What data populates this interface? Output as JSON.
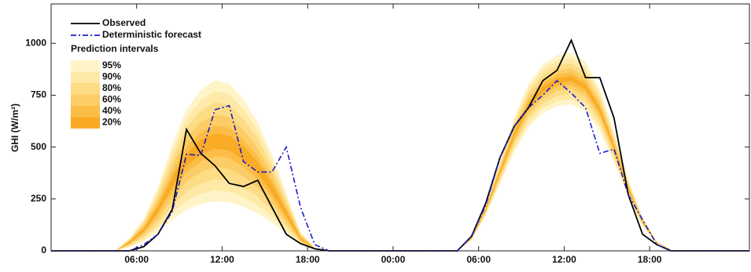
{
  "chart_data": {
    "type": "fan",
    "y_label": "GHI (W/m²)",
    "legend_title": "Prediction intervals",
    "xlim": [
      0,
      49
    ],
    "xticks": [
      {
        "value": 6,
        "label": "06:00"
      },
      {
        "value": 12,
        "label": "12:00"
      },
      {
        "value": 18,
        "label": "18:00"
      },
      {
        "value": 24,
        "label": "00:00"
      },
      {
        "value": 30,
        "label": "06:00"
      },
      {
        "value": 36,
        "label": "12:00"
      },
      {
        "value": 42,
        "label": "18:00"
      }
    ],
    "ylim": [
      0,
      1190
    ],
    "yticks": [
      0,
      250,
      500,
      750,
      1000
    ],
    "x": [
      0,
      4.5,
      5.5,
      6.5,
      7.5,
      8.5,
      9.5,
      10.5,
      11.5,
      12.5,
      13.5,
      14.5,
      15.5,
      16.5,
      17.5,
      18.5,
      19.5,
      28.5,
      29.5,
      30.5,
      31.5,
      32.5,
      33.5,
      34.5,
      35.5,
      36.5,
      37.5,
      38.5,
      39.5,
      40.5,
      41.5,
      42.5,
      43.5,
      44.5,
      49
    ],
    "series": [
      {
        "name": "Observed",
        "color": "#000000",
        "dash": "solid",
        "values": [
          0,
          0,
          0,
          20,
          80,
          200,
          585,
          470,
          410,
          325,
          310,
          340,
          210,
          80,
          35,
          10,
          0,
          0,
          70,
          230,
          450,
          600,
          690,
          820,
          870,
          1015,
          835,
          835,
          640,
          270,
          80,
          30,
          0,
          0,
          0
        ]
      },
      {
        "name": "Deterministic forecast",
        "color": "#1a1ad0",
        "dash": "dashdot",
        "values": [
          0,
          0,
          0,
          30,
          80,
          190,
          465,
          460,
          680,
          700,
          430,
          380,
          380,
          500,
          210,
          30,
          0,
          0,
          70,
          220,
          450,
          600,
          690,
          750,
          820,
          760,
          690,
          470,
          490,
          270,
          150,
          30,
          0,
          0,
          0
        ]
      }
    ],
    "bands_x": [
      4.5,
      5.5,
      6.5,
      7.5,
      8.5,
      9.5,
      10.5,
      11.5,
      12.5,
      13.5,
      14.5,
      15.5,
      16.5,
      17.5,
      18.5,
      19.5,
      28.5,
      29.5,
      30.5,
      31.5,
      32.5,
      33.5,
      34.5,
      35.5,
      36.5,
      37.5,
      38.5,
      39.5,
      40.5,
      41.5,
      42.5,
      43.5,
      44.5
    ],
    "bands": [
      {
        "name": "95%",
        "color": "#fff4c8",
        "upper": [
          0,
          62,
          155,
          310,
          512,
          682,
          775,
          822,
          806,
          729,
          620,
          465,
          279,
          93,
          16,
          0,
          0,
          69,
          230,
          437,
          644,
          805,
          897,
          943,
          955,
          909,
          782,
          575,
          345,
          161,
          46,
          6,
          0
        ],
        "lower": [
          0,
          18,
          45,
          90,
          149,
          198,
          225,
          239,
          234,
          212,
          180,
          135,
          81,
          27,
          5,
          0,
          0,
          51,
          170,
          323,
          476,
          595,
          663,
          697,
          706,
          672,
          578,
          425,
          255,
          119,
          34,
          4,
          0
        ]
      },
      {
        "name": "90%",
        "color": "#feeaa6",
        "upper": [
          0,
          58,
          145,
          290,
          479,
          638,
          725,
          769,
          754,
          682,
          580,
          435,
          261,
          87,
          15,
          0,
          0,
          67,
          224,
          426,
          627,
          784,
          874,
          918,
          930,
          885,
          762,
          560,
          336,
          157,
          45,
          6,
          0
        ],
        "lower": [
          0,
          22,
          55,
          110,
          182,
          242,
          275,
          292,
          286,
          259,
          220,
          165,
          99,
          33,
          6,
          0,
          0,
          53,
          176,
          334,
          493,
          616,
          686,
          722,
          730,
          695,
          598,
          440,
          264,
          123,
          35,
          4,
          0
        ]
      },
      {
        "name": "80%",
        "color": "#fddc86",
        "upper": [
          0,
          54,
          135,
          270,
          446,
          594,
          675,
          716,
          702,
          635,
          540,
          405,
          243,
          81,
          14,
          0,
          0,
          65,
          218,
          414,
          610,
          763,
          850,
          894,
          905,
          861,
          741,
          545,
          327,
          153,
          44,
          5,
          0
        ],
        "lower": [
          0,
          26,
          65,
          130,
          215,
          286,
          325,
          345,
          338,
          306,
          260,
          195,
          117,
          39,
          7,
          0,
          0,
          55,
          182,
          346,
          510,
          637,
          710,
          746,
          755,
          719,
          619,
          455,
          273,
          127,
          36,
          5,
          0
        ]
      },
      {
        "name": "60%",
        "color": "#fccd66",
        "upper": [
          0,
          50,
          124,
          248,
          409,
          546,
          620,
          657,
          645,
          583,
          496,
          372,
          223,
          74,
          12,
          0,
          0,
          64,
          212,
          403,
          594,
          742,
          827,
          869,
          880,
          837,
          721,
          530,
          318,
          148,
          42,
          5,
          0
        ],
        "lower": [
          0,
          30,
          76,
          152,
          251,
          334,
          380,
          403,
          395,
          357,
          304,
          228,
          137,
          46,
          8,
          0,
          0,
          56,
          188,
          357,
          526,
          658,
          733,
          771,
          780,
          743,
          639,
          470,
          282,
          132,
          38,
          5,
          0
        ]
      },
      {
        "name": "40%",
        "color": "#fbbd45",
        "upper": [
          0,
          46,
          114,
          228,
          376,
          502,
          570,
          604,
          593,
          536,
          456,
          342,
          205,
          68,
          11,
          0,
          0,
          62,
          207,
          393,
          580,
          725,
          807,
          849,
          859,
          818,
          704,
          518,
          311,
          145,
          41,
          5,
          0
        ],
        "lower": [
          0,
          34,
          86,
          172,
          284,
          378,
          430,
          456,
          447,
          404,
          344,
          258,
          155,
          52,
          9,
          0,
          0,
          58,
          193,
          367,
          540,
          676,
          753,
          791,
          801,
          762,
          656,
          483,
          290,
          135,
          39,
          5,
          0
        ]
      },
      {
        "name": "20%",
        "color": "#f9ab25",
        "upper": [
          0,
          43,
          107,
          214,
          353,
          471,
          535,
          567,
          556,
          503,
          428,
          321,
          193,
          64,
          11,
          0,
          0,
          61,
          203,
          386,
          568,
          711,
          792,
          832,
          842,
          802,
          690,
          508,
          305,
          142,
          41,
          5,
          0
        ],
        "lower": [
          0,
          37,
          93,
          186,
          307,
          409,
          465,
          493,
          484,
          437,
          372,
          279,
          167,
          56,
          9,
          0,
          0,
          59,
          197,
          374,
          552,
          690,
          768,
          808,
          818,
          778,
          670,
          493,
          296,
          138,
          39,
          5,
          0
        ]
      }
    ]
  }
}
